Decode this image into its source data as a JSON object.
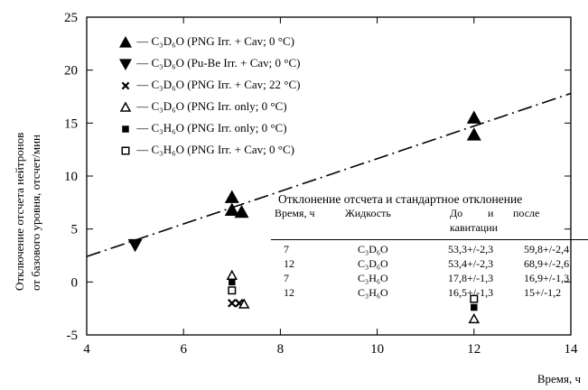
{
  "chart_data": {
    "type": "scatter",
    "x": {
      "label": "Время, ч",
      "range": [
        4,
        14
      ],
      "ticks": [
        4,
        6,
        8,
        10,
        12,
        14
      ]
    },
    "y": {
      "label": [
        "Отключение отсчета нейтронов",
        "от базового уровня, отсчет/мин"
      ],
      "range": [
        -5,
        25
      ],
      "ticks": [
        -5,
        0,
        5,
        10,
        15,
        20,
        25
      ]
    },
    "series": [
      {
        "name": "— C₃D₆O (PNG Irr. + Cav; 0 °C)",
        "marker": "triangle-up-filled",
        "points": [
          [
            7.0,
            8.0
          ],
          [
            7.0,
            6.8
          ],
          [
            7.2,
            6.6
          ],
          [
            12.0,
            15.5
          ],
          [
            12.0,
            13.9
          ]
        ]
      },
      {
        "name": "— C₃D₆O (Pu-Be Irr. + Cav; 0 °C)",
        "marker": "triangle-down-filled",
        "points": [
          [
            5.0,
            3.5
          ]
        ]
      },
      {
        "name": "— C₃D₆O (PNG Irr. + Cav; 22 °C)",
        "marker": "x",
        "points": [
          [
            7.0,
            -2.0
          ],
          [
            7.15,
            -2.0
          ]
        ]
      },
      {
        "name": "— C₃D₆O (PNG Irr. only; 0 °C)",
        "marker": "triangle-up-open",
        "points": [
          [
            7.0,
            0.6
          ],
          [
            7.25,
            -2.1
          ],
          [
            12.0,
            -3.5
          ]
        ]
      },
      {
        "name": "— C₃H₆O (PNG Irr. only; 0 °C)",
        "marker": "square-filled",
        "points": [
          [
            7.0,
            0.0
          ],
          [
            12.0,
            -2.4
          ]
        ]
      },
      {
        "name": "— C₃H₆O (PNG Irr. + Cav; 0 °C)",
        "marker": "square-open",
        "points": [
          [
            7.0,
            -0.8
          ],
          [
            12.0,
            -1.6
          ]
        ]
      }
    ],
    "trendline": {
      "style": "dash-dot",
      "from": [
        4.0,
        2.4
      ],
      "to": [
        14.0,
        17.8
      ]
    },
    "table": {
      "title": "Отклонение отсчета и стандартное отклонение",
      "headers": [
        "Время, ч",
        "Жидкость",
        "До",
        "и",
        "после"
      ],
      "subheader": "кавитации",
      "rows": [
        [
          "7",
          "C₃D₆O",
          "53,3+/-2,3",
          "59,8+/-2,4"
        ],
        [
          "12",
          "C₃D₆O",
          "53,4+/-2,3",
          "68,9+/-2,6"
        ],
        [
          "7",
          "C₃H₆O",
          "17,8+/-1,3",
          "16,9+/-1,3"
        ],
        [
          "12",
          "C₃H₆O",
          "16,5+/-1,3",
          "15+/-1,2"
        ]
      ]
    },
    "legend_position": "top-left",
    "grid": false
  }
}
